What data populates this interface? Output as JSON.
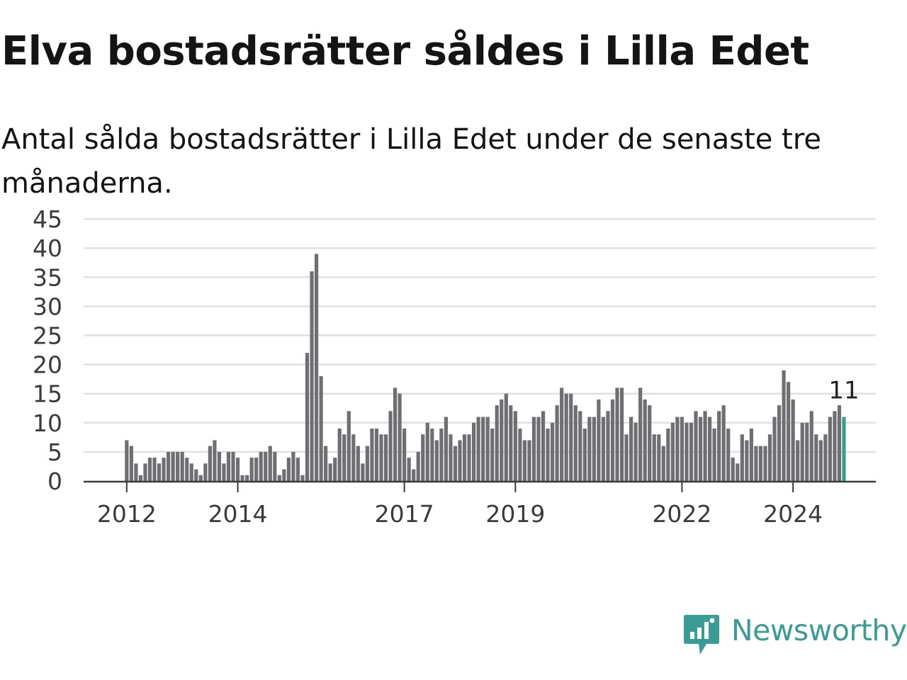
{
  "title": "Elva bostadsrätter såldes i Lilla Edet",
  "subtitle": "Antal sålda bostadsrätter i Lilla Edet under de senaste tre månaderna.",
  "brand": {
    "name": "Newsworthy",
    "icon": "newsworthy-logo-icon",
    "color": "#3a9c94"
  },
  "chart_data": {
    "type": "bar",
    "y_ticks": [
      0,
      5,
      10,
      15,
      20,
      25,
      30,
      35,
      40,
      45
    ],
    "ylim": [
      0,
      45
    ],
    "x_ticks": [
      {
        "label": "2012",
        "index": 8
      },
      {
        "label": "2014",
        "index": 32
      },
      {
        "label": "2017",
        "index": 68
      },
      {
        "label": "2019",
        "index": 92
      },
      {
        "label": "2022",
        "index": 128
      },
      {
        "label": "2024",
        "index": 152
      }
    ],
    "values": [
      0,
      0,
      0,
      0,
      0,
      0,
      0,
      0,
      7,
      6,
      3,
      1,
      3,
      4,
      4,
      3,
      4,
      5,
      5,
      5,
      5,
      4,
      3,
      2,
      1,
      3,
      6,
      7,
      5,
      3,
      5,
      5,
      4,
      1,
      1,
      4,
      4,
      5,
      5,
      6,
      5,
      1,
      2,
      4,
      5,
      4,
      1,
      22,
      36,
      39,
      18,
      6,
      3,
      4,
      9,
      8,
      12,
      8,
      6,
      3,
      6,
      9,
      9,
      8,
      8,
      12,
      16,
      15,
      9,
      4,
      2,
      5,
      8,
      10,
      9,
      7,
      9,
      11,
      8,
      6,
      7,
      8,
      8,
      10,
      11,
      11,
      11,
      9,
      13,
      14,
      15,
      13,
      12,
      9,
      7,
      7,
      11,
      11,
      12,
      9,
      10,
      13,
      16,
      15,
      15,
      13,
      12,
      9,
      11,
      11,
      14,
      11,
      12,
      14,
      16,
      16,
      8,
      11,
      10,
      16,
      14,
      13,
      8,
      8,
      6,
      9,
      10,
      11,
      11,
      10,
      10,
      12,
      11,
      12,
      11,
      9,
      12,
      13,
      9,
      4,
      3,
      8,
      7,
      9,
      6,
      6,
      6,
      8,
      11,
      13,
      19,
      17,
      14,
      7,
      10,
      10,
      12,
      8,
      7,
      8,
      11,
      12,
      13,
      11
    ],
    "highlight_index": 163,
    "highlight_label": "11",
    "colors": {
      "bar": "#6f6e73",
      "highlight": "#3a9c94",
      "grid": "#e0e0e0",
      "axis": "#3a3a3a",
      "tick_text": "#3a3a3a"
    }
  }
}
